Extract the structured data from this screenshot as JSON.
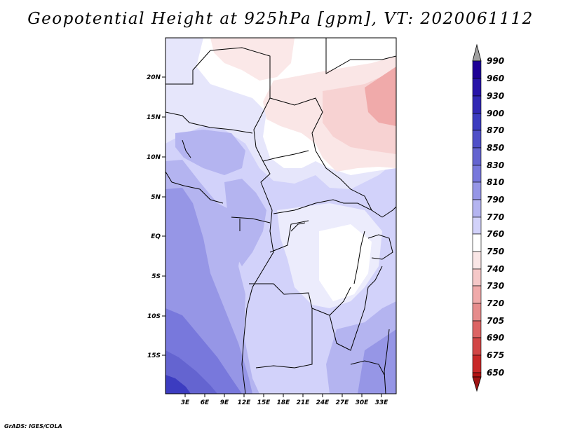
{
  "title": "Geopotential Height at 925hPa [gpm], VT: 2020061112",
  "credit": "GrADS: IGES/COLA",
  "lat_ticks": [
    "20N",
    "15N",
    "10N",
    "5N",
    "EQ",
    "5S",
    "10S",
    "15S"
  ],
  "lon_ticks": [
    "3E",
    "6E",
    "9E",
    "12E",
    "15E",
    "18E",
    "21E",
    "24E",
    "27E",
    "30E",
    "33E"
  ],
  "colorbar": {
    "levels": [
      "990",
      "960",
      "930",
      "900",
      "870",
      "850",
      "830",
      "810",
      "790",
      "770",
      "760",
      "750",
      "740",
      "730",
      "720",
      "705",
      "690",
      "675",
      "650"
    ],
    "colors": {
      "top_arrow": "#a0a0a0",
      "cb_990": "#1e0096",
      "cb_960": "#2814a8",
      "cb_930": "#3228b4",
      "cb_900": "#3c3cc0",
      "cb_870": "#5050c8",
      "cb_850": "#6464d0",
      "cb_830": "#7878dc",
      "cb_810": "#9696e6",
      "cb_790": "#b4b4f0",
      "cb_770": "#d2d2fa",
      "cb_760": "#ffffff",
      "cb_750": "#fae6e6",
      "cb_740": "#f5c8c8",
      "cb_730": "#f0aaaa",
      "cb_720": "#e68c8c",
      "cb_705": "#dc6464",
      "cb_690": "#d24646",
      "cb_675": "#c82828",
      "cb_650": "#b41414",
      "bottom_arrow": "#a01414"
    }
  }
}
